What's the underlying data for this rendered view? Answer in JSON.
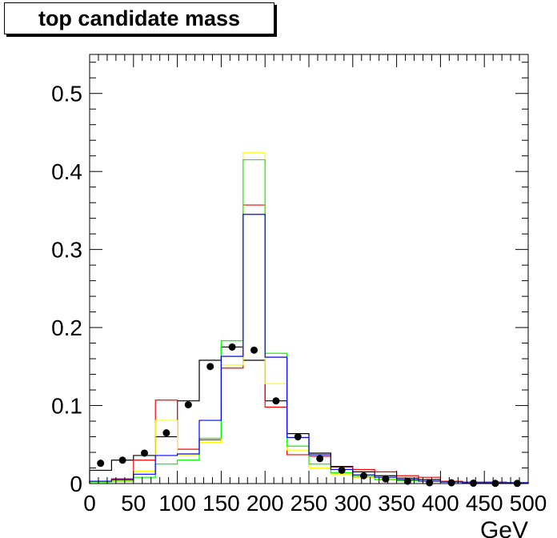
{
  "chart_data": {
    "type": "histogram",
    "title": "top candidate mass",
    "xlabel": "GeV",
    "ylabel": "",
    "xlim": [
      0,
      500
    ],
    "ylim": [
      0,
      0.55
    ],
    "x_ticks": [
      "0",
      "50",
      "100",
      "150",
      "200",
      "250",
      "300",
      "350",
      "400",
      "450",
      "500"
    ],
    "y_ticks": [
      "0",
      "0.1",
      "0.2",
      "0.3",
      "0.4",
      "0.5"
    ],
    "bin_edges": [
      0,
      25,
      50,
      75,
      100,
      125,
      150,
      175,
      200,
      225,
      250,
      275,
      300,
      325,
      350,
      375,
      400,
      425,
      450,
      475,
      500
    ],
    "series": [
      {
        "color": "#000000",
        "style": "step",
        "values": [
          0.017,
          0.03,
          0.036,
          0.06,
          0.106,
          0.158,
          0.175,
          0.158,
          0.106,
          0.064,
          0.039,
          0.022,
          0.015,
          0.01,
          0.007,
          0.005,
          0.003,
          0.002,
          0.002,
          0.001
        ]
      },
      {
        "color": "#ff0000",
        "style": "step",
        "values": [
          0.003,
          0.006,
          0.03,
          0.107,
          0.044,
          0.056,
          0.148,
          0.357,
          0.098,
          0.037,
          0.035,
          0.021,
          0.018,
          0.015,
          0.01,
          0.008,
          0.003,
          0.002,
          0.002,
          0.001
        ]
      },
      {
        "color": "#ffff00",
        "style": "step",
        "values": [
          0.002,
          0.004,
          0.016,
          0.081,
          0.036,
          0.053,
          0.152,
          0.424,
          0.128,
          0.043,
          0.02,
          0.012,
          0.008,
          0.006,
          0.004,
          0.003,
          0.002,
          0.001,
          0.001,
          0.001
        ]
      },
      {
        "color": "#00ff00",
        "style": "step",
        "values": [
          0.002,
          0.003,
          0.008,
          0.025,
          0.03,
          0.058,
          0.183,
          0.415,
          0.167,
          0.048,
          0.025,
          0.014,
          0.009,
          0.005,
          0.004,
          0.003,
          0.002,
          0.001,
          0.001,
          0.001
        ]
      },
      {
        "color": "#0000ff",
        "style": "step",
        "values": [
          0.003,
          0.005,
          0.012,
          0.036,
          0.038,
          0.081,
          0.163,
          0.345,
          0.162,
          0.059,
          0.037,
          0.018,
          0.011,
          0.008,
          0.005,
          0.003,
          0.002,
          0.001,
          0.001,
          0.001
        ]
      },
      {
        "color": "#000000",
        "style": "markers",
        "values": [
          0.026,
          0.03,
          0.039,
          0.065,
          0.101,
          0.15,
          0.175,
          0.171,
          0.106,
          0.06,
          0.032,
          0.017,
          0.01,
          0.006,
          0.003,
          0.001,
          0.001,
          0.0005,
          0.0003,
          0.0002
        ]
      }
    ]
  }
}
